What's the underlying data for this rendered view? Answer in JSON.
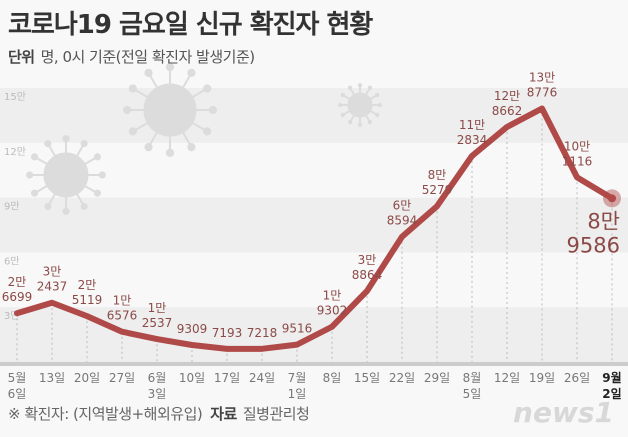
{
  "header": {
    "title": "코로나19 금요일 신규 확진자 현황",
    "unit_label": "단위",
    "unit_text": "명, 0시 기준(전일 확진자 발생기준)"
  },
  "footer": {
    "note": "※ 확진자: (지역발생+해외유입)",
    "source_label": "자료",
    "source": "질병관리청",
    "logo": "news1"
  },
  "colors": {
    "line": "#b04a48",
    "label": "#8b4a47",
    "band": "#eeeeee",
    "axis": "#cccccc"
  },
  "chart_data": {
    "type": "line",
    "title": "코로나19 금요일 신규 확진자 현황",
    "ylim": [
      0,
      150000
    ],
    "yticks": [
      {
        "v": 30000,
        "label": "3만"
      },
      {
        "v": 60000,
        "label": "6만"
      },
      {
        "v": 90000,
        "label": "9만"
      },
      {
        "v": 120000,
        "label": "12만"
      },
      {
        "v": 150000,
        "label": "15만"
      }
    ],
    "categories": [
      [
        "5월",
        "6일"
      ],
      [
        "13일"
      ],
      [
        "20일"
      ],
      [
        "27일"
      ],
      [
        "6월",
        "3일"
      ],
      [
        "10일"
      ],
      [
        "17일"
      ],
      [
        "24일"
      ],
      [
        "7월",
        "1일"
      ],
      [
        "8일"
      ],
      [
        "15일"
      ],
      [
        "22일"
      ],
      [
        "29일"
      ],
      [
        "8월",
        "5일"
      ],
      [
        "12일"
      ],
      [
        "19일"
      ],
      [
        "26일"
      ],
      [
        "9월",
        "2일"
      ]
    ],
    "values": [
      26699,
      32437,
      25119,
      16576,
      12537,
      9309,
      7193,
      7218,
      9516,
      19302,
      38864,
      68594,
      85279,
      112834,
      128662,
      138776,
      101116,
      89586
    ],
    "data_labels": [
      [
        "2만",
        "6699"
      ],
      [
        "3만",
        "2437"
      ],
      [
        "2만",
        "5119"
      ],
      [
        "1만",
        "6576"
      ],
      [
        "1만",
        "2537"
      ],
      [
        "9309"
      ],
      [
        "7193"
      ],
      [
        "7218"
      ],
      [
        "9516"
      ],
      [
        "1만",
        "9302"
      ],
      [
        "3만",
        "8864"
      ],
      [
        "6만",
        "8594"
      ],
      [
        "8만",
        "5279"
      ],
      [
        "11만",
        "2834"
      ],
      [
        "12만",
        "8662"
      ],
      [
        "13만",
        "8776"
      ],
      [
        "10만",
        "1116"
      ],
      [
        "8만",
        "9586"
      ]
    ],
    "grid": "horizontal bands",
    "highlight_last": true
  }
}
